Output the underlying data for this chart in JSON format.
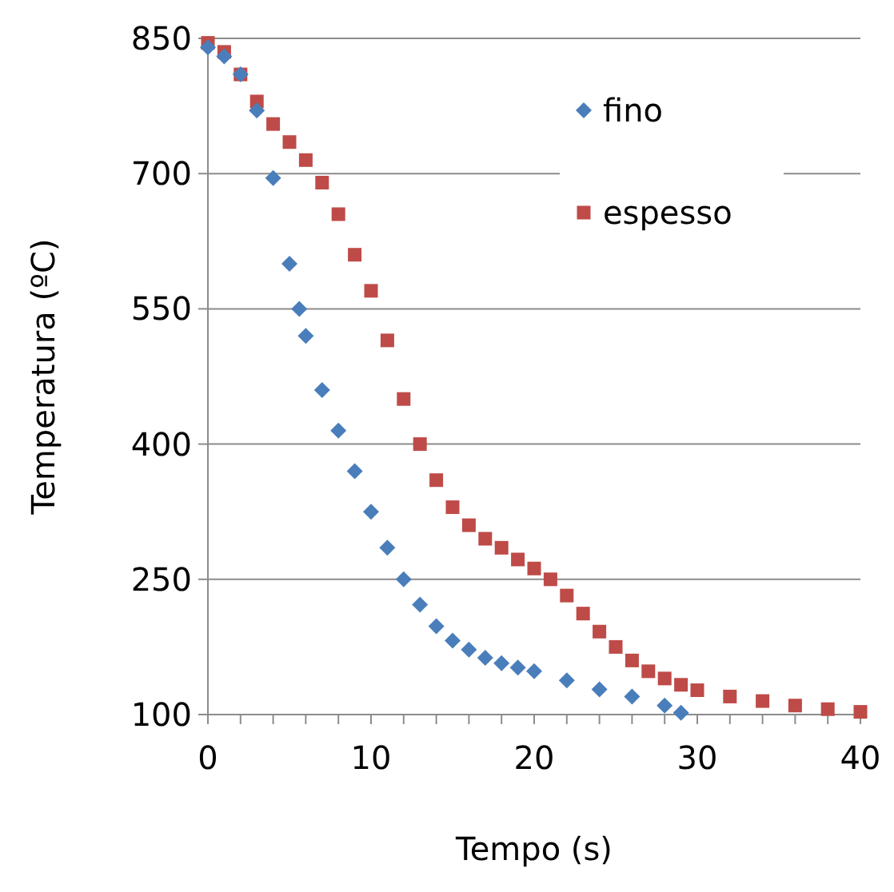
{
  "chart_data": {
    "type": "scatter",
    "xlabel": "Tempo (s)",
    "ylabel": "Temperatura (ºC)",
    "xlim": [
      0,
      40
    ],
    "ylim": [
      100,
      850
    ],
    "xticks": [
      0,
      {
        "value": 2,
        "label": null
      },
      {
        "value": 4,
        "label": null
      },
      {
        "value": 6,
        "label": null
      },
      {
        "value": 8,
        "label": null
      },
      10,
      {
        "value": 12,
        "label": null
      },
      {
        "value": 14,
        "label": null
      },
      {
        "value": 16,
        "label": null
      },
      {
        "value": 18,
        "label": null
      },
      20,
      {
        "value": 22,
        "label": null
      },
      {
        "value": 24,
        "label": null
      },
      {
        "value": 26,
        "label": null
      },
      {
        "value": 28,
        "label": null
      },
      30,
      {
        "value": 32,
        "label": null
      },
      {
        "value": 34,
        "label": null
      },
      {
        "value": 36,
        "label": null
      },
      {
        "value": 38,
        "label": null
      },
      40
    ],
    "yticks": [
      100,
      250,
      400,
      550,
      700,
      850
    ],
    "grid": "y",
    "legend": "top right",
    "series": [
      {
        "name": "fino",
        "color": "#4a7ebb",
        "marker": "diamond",
        "x": [
          0,
          1,
          2,
          3,
          4,
          5,
          5.6,
          6,
          7,
          8,
          9,
          10,
          11,
          12,
          13,
          14,
          15,
          16,
          17,
          18,
          19,
          20,
          22,
          24,
          26,
          28,
          29
        ],
        "values": [
          840,
          830,
          810,
          770,
          695,
          600,
          550,
          520,
          460,
          415,
          370,
          325,
          285,
          250,
          222,
          198,
          182,
          172,
          163,
          157,
          152,
          148,
          138,
          128,
          120,
          110,
          102
        ]
      },
      {
        "name": "espesso",
        "color": "#be4b48",
        "marker": "square",
        "x": [
          0,
          1,
          2,
          3,
          4,
          5,
          6,
          7,
          8,
          9,
          10,
          11,
          12,
          13,
          14,
          15,
          16,
          17,
          18,
          19,
          20,
          21,
          22,
          23,
          24,
          25,
          26,
          27,
          28,
          29,
          30,
          32,
          34,
          36,
          38,
          40
        ],
        "values": [
          845,
          835,
          810,
          780,
          755,
          735,
          715,
          690,
          655,
          610,
          570,
          515,
          450,
          400,
          360,
          330,
          310,
          295,
          285,
          272,
          262,
          250,
          232,
          212,
          192,
          175,
          160,
          148,
          140,
          133,
          127,
          120,
          115,
          110,
          106,
          103
        ]
      }
    ]
  }
}
